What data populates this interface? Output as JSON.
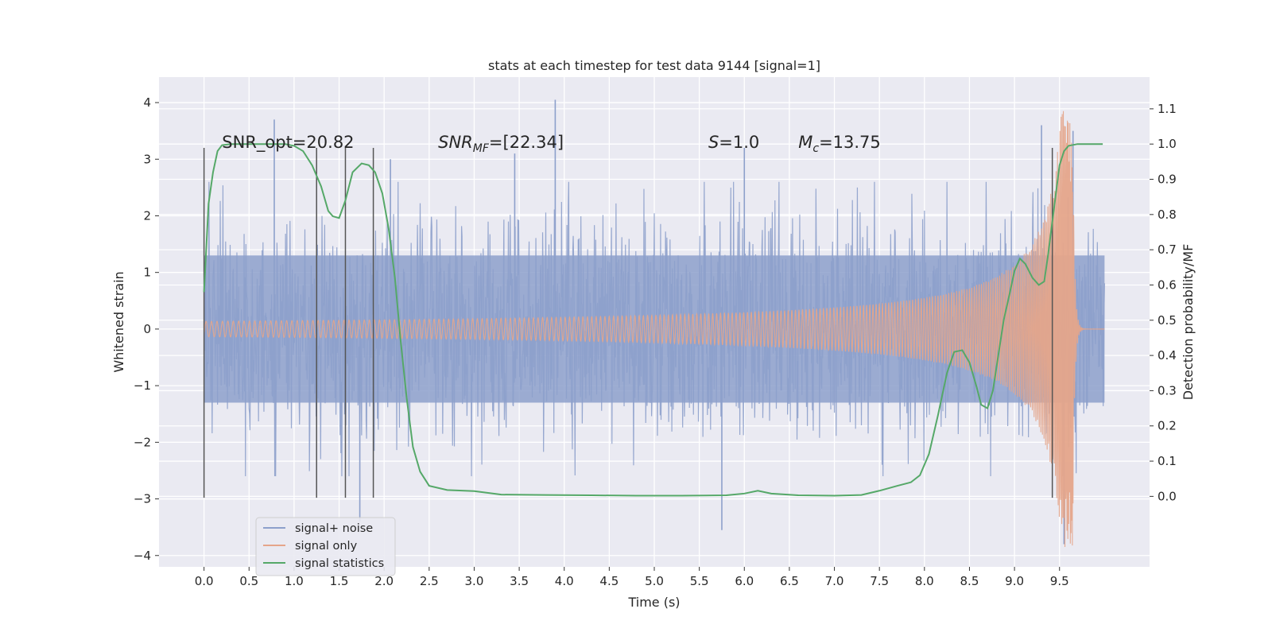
{
  "chart_data": {
    "type": "line",
    "title": "stats at each timestep for test data 9144 [signal=1]",
    "xlabel": "Time (s)",
    "ylabel": "Whitened strain",
    "ylabel_right": "Detection probability/MF",
    "xlim": [
      -0.5,
      10.5
    ],
    "ylim": [
      -4.2,
      4.45
    ],
    "ylim_right": [
      -0.2,
      1.19
    ],
    "x_ticks": [
      "0.0",
      "0.5",
      "1.0",
      "1.5",
      "2.0",
      "2.5",
      "3.0",
      "3.5",
      "4.0",
      "4.5",
      "5.0",
      "5.5",
      "6.0",
      "6.5",
      "7.0",
      "7.5",
      "8.0",
      "8.5",
      "9.0",
      "9.5"
    ],
    "y_ticks": [
      "−4",
      "−3",
      "−2",
      "−1",
      "0",
      "1",
      "2",
      "3",
      "4"
    ],
    "y_ticks_right": [
      "0.0",
      "0.1",
      "0.2",
      "0.3",
      "0.4",
      "0.5",
      "0.6",
      "0.7",
      "0.8",
      "0.9",
      "1.0",
      "1.1"
    ],
    "grid": true,
    "legend_position": "lower-left",
    "series": [
      {
        "name": "signal+ noise",
        "color": "#8da0cb",
        "axis": "left",
        "x_range": [
          0.0,
          10.0
        ],
        "typical_amplitude": 1.3,
        "peaks": [
          {
            "x": 0.78,
            "y": 3.7
          },
          {
            "x": 1.73,
            "y": -3.4
          },
          {
            "x": 2.07,
            "y": 3.0
          },
          {
            "x": 3.45,
            "y": 3.1
          },
          {
            "x": 3.9,
            "y": 4.05
          },
          {
            "x": 5.75,
            "y": -3.55
          },
          {
            "x": 6.0,
            "y": 3.2
          },
          {
            "x": 9.3,
            "y": 3.6
          },
          {
            "x": 9.55,
            "y": -3.8
          },
          {
            "x": 9.65,
            "y": 3.5
          }
        ]
      },
      {
        "name": "signal only",
        "color": "#e5a58a",
        "axis": "left",
        "type": "chirp",
        "merger_time": 9.65,
        "peak_amplitude": 3.85,
        "ringdown_min": -3.25
      },
      {
        "name": "signal statistics",
        "color": "#55a868",
        "axis": "right",
        "x": [
          0.0,
          0.05,
          0.1,
          0.15,
          0.2,
          0.3,
          0.5,
          0.7,
          0.9,
          1.0,
          1.1,
          1.2,
          1.3,
          1.38,
          1.43,
          1.5,
          1.57,
          1.65,
          1.75,
          1.83,
          1.9,
          1.98,
          2.05,
          2.12,
          2.18,
          2.25,
          2.32,
          2.4,
          2.5,
          2.7,
          3.0,
          3.3,
          3.8,
          4.3,
          4.8,
          5.3,
          5.8,
          6.0,
          6.15,
          6.3,
          6.6,
          7.0,
          7.3,
          7.5,
          7.7,
          7.85,
          7.95,
          8.05,
          8.15,
          8.25,
          8.33,
          8.42,
          8.5,
          8.58,
          8.63,
          8.7,
          8.76,
          8.82,
          8.88,
          8.95,
          9.0,
          9.06,
          9.12,
          9.2,
          9.27,
          9.33,
          9.37,
          9.42,
          9.46,
          9.5,
          9.55,
          9.6,
          9.7,
          9.8,
          9.9,
          9.98
        ],
        "y": [
          0.58,
          0.83,
          0.92,
          0.98,
          0.997,
          1.0,
          1.0,
          1.0,
          1.0,
          0.995,
          0.98,
          0.94,
          0.88,
          0.81,
          0.795,
          0.79,
          0.84,
          0.92,
          0.945,
          0.94,
          0.92,
          0.86,
          0.76,
          0.62,
          0.45,
          0.28,
          0.14,
          0.07,
          0.03,
          0.018,
          0.015,
          0.005,
          0.004,
          0.003,
          0.002,
          0.002,
          0.003,
          0.008,
          0.016,
          0.008,
          0.003,
          0.002,
          0.004,
          0.016,
          0.03,
          0.04,
          0.06,
          0.12,
          0.23,
          0.35,
          0.41,
          0.415,
          0.38,
          0.31,
          0.26,
          0.25,
          0.3,
          0.4,
          0.5,
          0.58,
          0.64,
          0.675,
          0.66,
          0.62,
          0.6,
          0.61,
          0.68,
          0.78,
          0.86,
          0.94,
          0.98,
          0.995,
          1.0,
          1.0,
          1.0,
          1.0
        ]
      }
    ],
    "vertical_lines": {
      "color": "#555555",
      "y_range": [
        -2.98,
        3.2
      ],
      "x": [
        0.0,
        1.25,
        1.57,
        1.88,
        9.42
      ]
    },
    "annotations": [
      {
        "x": 0.2,
        "y": 3.2,
        "text": "SNR_opt=20.82"
      },
      {
        "x": 2.6,
        "y": 3.2,
        "base": "SNR",
        "sub": "MF",
        "rest": "=[22.34]",
        "italic_base": true
      },
      {
        "x": 5.6,
        "y": 3.2,
        "base": "S",
        "sub": "",
        "rest": "=1.0",
        "italic_base": true
      },
      {
        "x": 6.6,
        "y": 3.2,
        "base": "M",
        "sub": "c",
        "rest": "=13.75",
        "italic_base": true
      }
    ]
  }
}
